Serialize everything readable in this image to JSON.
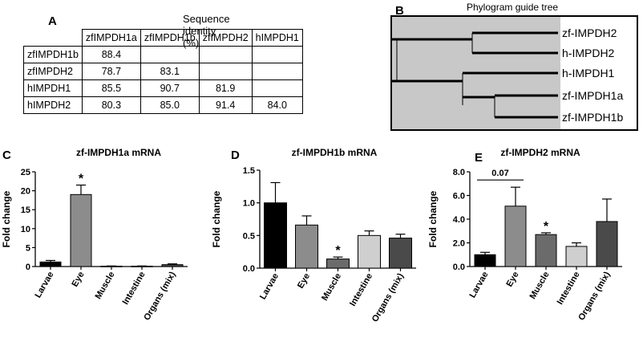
{
  "panels": {
    "a": "A",
    "b": "B",
    "c": "C",
    "d": "D",
    "e": "E"
  },
  "identity_table": {
    "title": "Sequence identity (%)",
    "columns": [
      "zfIMPDH1a",
      "zfIMPDH1b",
      "zfIMPDH2",
      "hIMPDH1"
    ],
    "rows": [
      {
        "label": "zfIMPDH1b",
        "values": [
          "88.4",
          "",
          "",
          ""
        ]
      },
      {
        "label": "zfIMPDH2",
        "values": [
          "78.7",
          "83.1",
          "",
          ""
        ]
      },
      {
        "label": "hIMPDH1",
        "values": [
          "85.5",
          "90.7",
          "81.9",
          ""
        ]
      },
      {
        "label": "hIMPDH2",
        "values": [
          "80.3",
          "85.0",
          "91.4",
          "84.0"
        ]
      }
    ]
  },
  "tree": {
    "title": "Phylogram guide tree",
    "leaves": [
      "zf-IMPDH2",
      "h-IMPDH2",
      "h-IMPDH1",
      "zf-IMPDH1a",
      "zf-IMPDH1b"
    ],
    "background": "#c8c8c8"
  },
  "chart_data": [
    {
      "type": "bar",
      "title": "zf-IMPDH1a mRNA",
      "ylabel": "Fold change",
      "categories": [
        "Larvae",
        "Eye",
        "Muscle",
        "Intestine",
        "Organs (mix)"
      ],
      "values": [
        1.2,
        19.0,
        0.1,
        0.1,
        0.5
      ],
      "errors": [
        0.4,
        2.5,
        0.05,
        0.05,
        0.2
      ],
      "ylim": [
        0,
        25
      ],
      "yticks": [
        "0",
        "5",
        "10",
        "15",
        "20",
        "25"
      ],
      "ytick_values": [
        0,
        5,
        10,
        15,
        20,
        25
      ],
      "colors": [
        "#000000",
        "#8c8c8c",
        "#6b6b6b",
        "#cfcfcf",
        "#4a4a4a"
      ],
      "annotations": [
        {
          "category": "Eye",
          "text": "*"
        }
      ]
    },
    {
      "type": "bar",
      "title": "zf-IMPDH1b mRNA",
      "ylabel": "Fold change",
      "categories": [
        "Larvae",
        "Eye",
        "Muscle",
        "Intestine",
        "Organs (mix)"
      ],
      "values": [
        1.0,
        0.66,
        0.14,
        0.5,
        0.46
      ],
      "errors": [
        0.31,
        0.14,
        0.03,
        0.07,
        0.06
      ],
      "ylim": [
        0,
        1.5
      ],
      "yticks": [
        "0.0",
        "0.5",
        "1.0",
        "1.5"
      ],
      "ytick_values": [
        0,
        0.5,
        1.0,
        1.5
      ],
      "colors": [
        "#000000",
        "#8c8c8c",
        "#6b6b6b",
        "#cfcfcf",
        "#4a4a4a"
      ],
      "annotations": [
        {
          "category": "Muscle",
          "text": "*"
        }
      ]
    },
    {
      "type": "bar",
      "title": "zf-IMPDH2 mRNA",
      "ylabel": "Fold change",
      "categories": [
        "Larvae",
        "Eye",
        "Muscle",
        "Intestine",
        "Organs (mix)"
      ],
      "values": [
        1.0,
        5.1,
        2.7,
        1.7,
        3.8
      ],
      "errors": [
        0.2,
        1.6,
        0.15,
        0.3,
        1.9
      ],
      "ylim": [
        0,
        8
      ],
      "yticks": [
        "0.0",
        "2.0",
        "4.0",
        "6.0",
        "8.0"
      ],
      "ytick_values": [
        0,
        2,
        4,
        6,
        8
      ],
      "colors": [
        "#000000",
        "#8c8c8c",
        "#6b6b6b",
        "#cfcfcf",
        "#4a4a4a"
      ],
      "annotations": [
        {
          "category": "Muscle",
          "text": "*"
        }
      ],
      "brackets": [
        {
          "from": "Larvae",
          "to": "Eye",
          "text": "0.07"
        }
      ]
    }
  ]
}
